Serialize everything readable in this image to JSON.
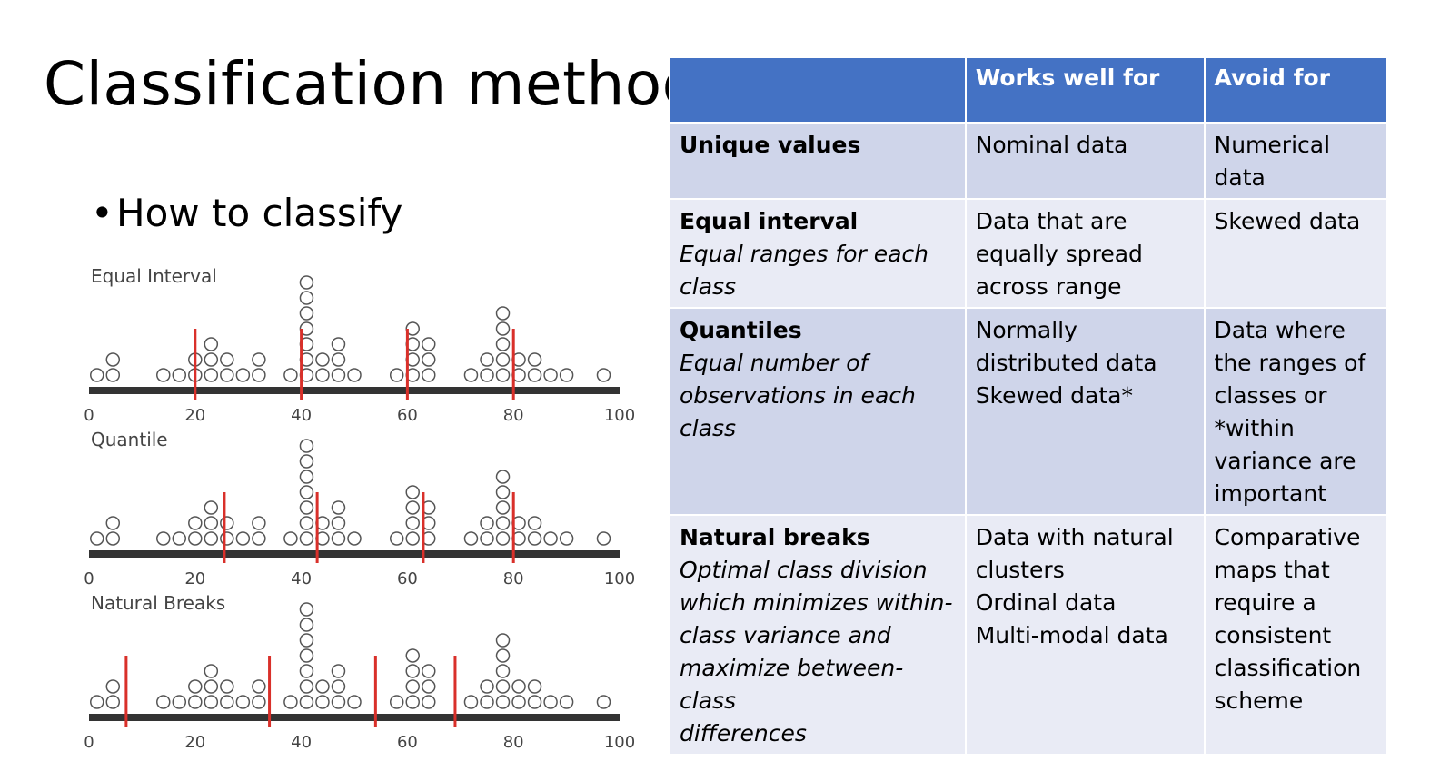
{
  "title": "Classification methods",
  "bullet": {
    "symbol": "•",
    "text": "How to classify"
  },
  "dotplots": [
    {
      "label": "Equal Interval",
      "ticks": [
        "0",
        "20",
        "40",
        "60",
        "80",
        "100"
      ],
      "breaks": [
        20,
        40,
        60,
        80
      ]
    },
    {
      "label": "Quantile",
      "ticks": [
        "0",
        "20",
        "40",
        "60",
        "80",
        "100"
      ],
      "breaks": [
        25.5,
        43,
        63,
        80
      ]
    },
    {
      "label": "Natural Breaks",
      "ticks": [
        "0",
        "20",
        "40",
        "60",
        "80",
        "100"
      ],
      "breaks": [
        7,
        34,
        54,
        69
      ]
    }
  ],
  "table": {
    "headers": [
      "",
      "Works well for",
      "Avoid for"
    ],
    "rows": [
      {
        "name": "Unique values",
        "desc": [],
        "works": [
          "Nominal data"
        ],
        "avoid": [
          "Numerical",
          "data"
        ]
      },
      {
        "name": "Equal interval",
        "desc": [
          "Equal ranges for each",
          "class"
        ],
        "works": [
          "Data that are",
          "equally spread",
          "across range"
        ],
        "avoid": [
          "Skewed data"
        ]
      },
      {
        "name": "Quantiles",
        "desc": [
          "Equal number of",
          "observations in each",
          "class"
        ],
        "works": [
          "Normally",
          "distributed data",
          "Skewed data*"
        ],
        "avoid": [
          "Data where",
          "the ranges of",
          "classes or",
          "*within",
          "variance are",
          "important"
        ]
      },
      {
        "name": "Natural breaks",
        "desc": [
          "Optimal class division",
          "which minimizes within-",
          "class variance and",
          "maximize between-class",
          "differences"
        ],
        "works": [
          "Data with natural",
          "clusters",
          "Ordinal data",
          "Multi-modal data"
        ],
        "avoid": [
          "Comparative",
          "maps that",
          "require a",
          "consistent",
          "classification",
          "scheme"
        ]
      }
    ]
  },
  "colors": {
    "header": "#4472c4",
    "row_dark": "#cfd5ea",
    "row_light": "#e9ebf5",
    "break_line": "#d9302a",
    "axis": "#333333"
  }
}
